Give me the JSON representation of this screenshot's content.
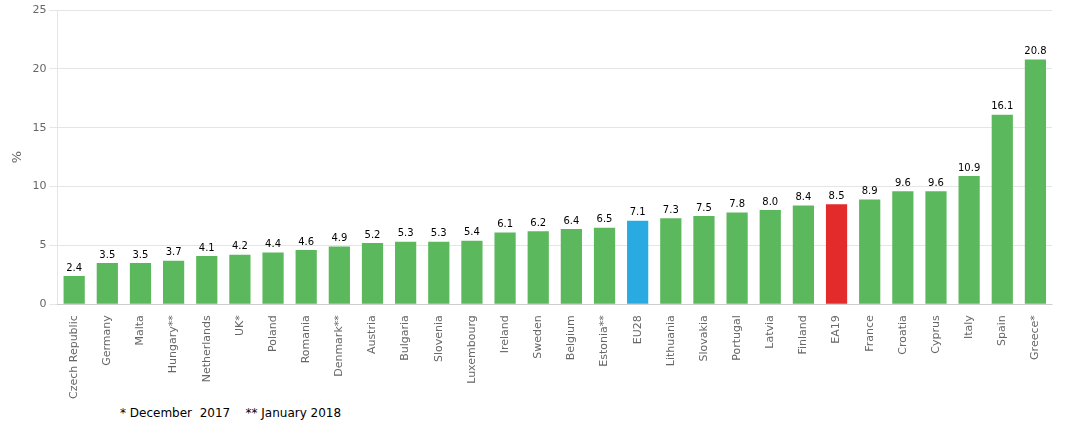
{
  "chart_data": {
    "type": "bar",
    "categories": [
      "Czech Republic",
      "Germany",
      "Malta",
      "Hungary**",
      "Netherlands",
      "UK*",
      "Poland",
      "Romania",
      "Denmark**",
      "Austria",
      "Bulgaria",
      "Slovenia",
      "Luxembourg",
      "Ireland",
      "Sweden",
      "Belgium",
      "Estonia**",
      "EU28",
      "Lithuania",
      "Slovakia",
      "Portugal",
      "Latvia",
      "Finland",
      "EA19",
      "France",
      "Croatia",
      "Cyprus",
      "Italy",
      "Spain",
      "Greece*"
    ],
    "values": [
      2.4,
      3.5,
      3.5,
      3.7,
      4.1,
      4.2,
      4.4,
      4.6,
      4.9,
      5.2,
      5.3,
      5.3,
      5.4,
      6.1,
      6.2,
      6.4,
      6.5,
      7.1,
      7.3,
      7.5,
      7.8,
      8.0,
      8.4,
      8.5,
      8.9,
      9.6,
      9.6,
      10.9,
      16.1,
      20.8
    ],
    "value_labels": [
      "2.4",
      "3.5",
      "3.5",
      "3.7",
      "4.1",
      "4.2",
      "4.4",
      "4.6",
      "4.9",
      "5.2",
      "5.3",
      "5.3",
      "5.4",
      "6.1",
      "6.2",
      "6.4",
      "6.5",
      "7.1",
      "7.3",
      "7.5",
      "7.8",
      "8.0",
      "8.4",
      "8.5",
      "8.9",
      "9.6",
      "9.6",
      "10.9",
      "16.1",
      "20.8"
    ],
    "colors": [
      "#5cb85c",
      "#5cb85c",
      "#5cb85c",
      "#5cb85c",
      "#5cb85c",
      "#5cb85c",
      "#5cb85c",
      "#5cb85c",
      "#5cb85c",
      "#5cb85c",
      "#5cb85c",
      "#5cb85c",
      "#5cb85c",
      "#5cb85c",
      "#5cb85c",
      "#5cb85c",
      "#5cb85c",
      "#29abe2",
      "#5cb85c",
      "#5cb85c",
      "#5cb85c",
      "#5cb85c",
      "#5cb85c",
      "#e32b2b",
      "#5cb85c",
      "#5cb85c",
      "#5cb85c",
      "#5cb85c",
      "#5cb85c",
      "#5cb85c"
    ],
    "ylabel": "%",
    "ylim": [
      0,
      25
    ],
    "yticks": [
      0,
      5,
      10,
      15,
      20,
      25
    ],
    "grid": true,
    "data_labels": true,
    "annotations": [
      "* December  2017    ** January 2018"
    ]
  }
}
